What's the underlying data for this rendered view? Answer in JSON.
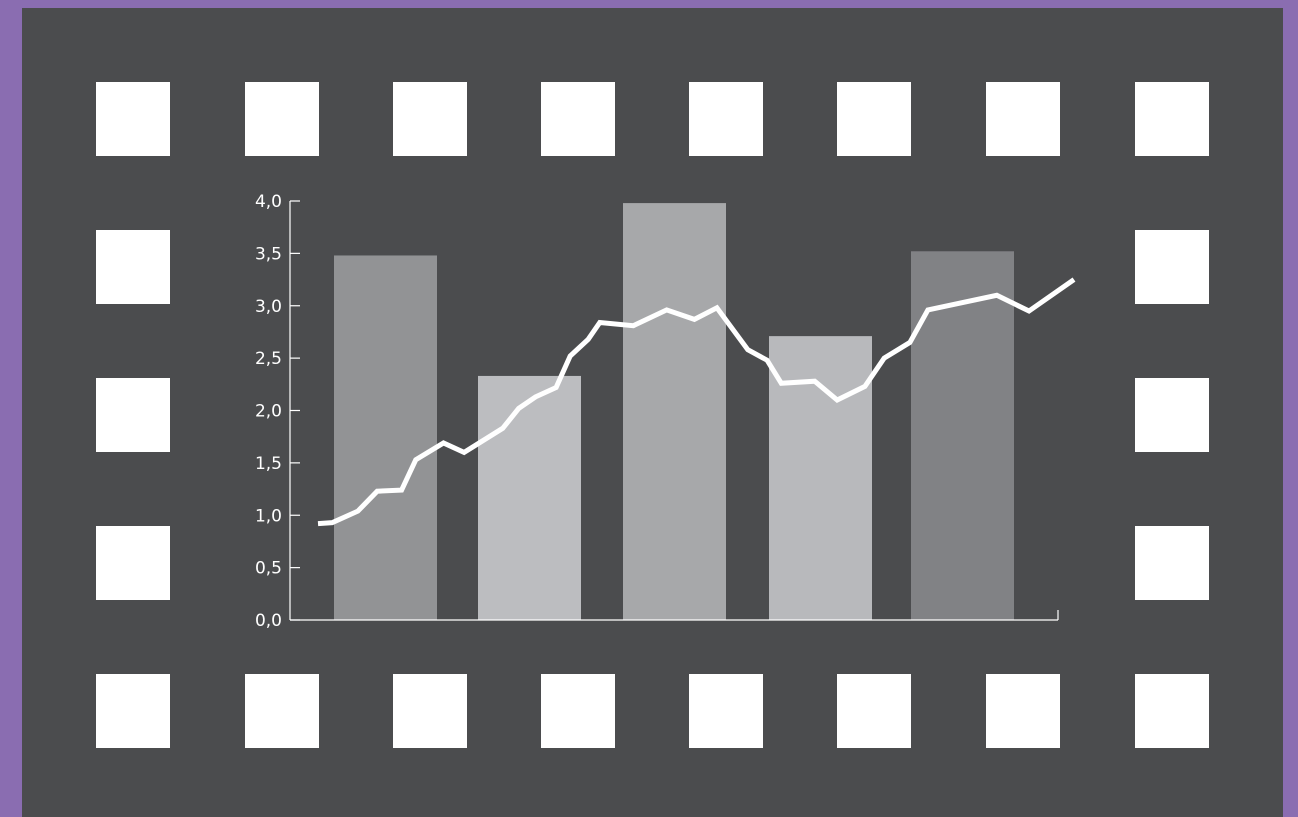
{
  "colors": {
    "border": "#8a6db1",
    "film_background": "#4b4c4e",
    "sprocket_holes": "#ffffff",
    "line": "#ffffff",
    "bar_colors": [
      "#929395",
      "#bcbdc0",
      "#a7a8aa",
      "#b8b9bc",
      "#818285"
    ]
  },
  "icons": [
    "film-strip-icon"
  ],
  "chart_data": {
    "type": "bar",
    "title": "",
    "xlabel": "",
    "ylabel": "",
    "ylim": [
      0,
      4
    ],
    "yticks": [
      "0,0",
      "0,5",
      "1,0",
      "1,5",
      "2,0",
      "2,5",
      "3,0",
      "3,5",
      "4,0"
    ],
    "grid": false,
    "legend": "none",
    "categories": [
      "",
      "",
      "",
      "",
      ""
    ],
    "series": [
      {
        "type": "bar",
        "values": [
          3.48,
          2.33,
          3.98,
          2.71,
          3.52
        ]
      },
      {
        "type": "line",
        "x": [
          0,
          0.2,
          0.5,
          0.7,
          0.95,
          1.1,
          1.4,
          1.7,
          2.05,
          2.25,
          2.55,
          2.8,
          3.05,
          3.2,
          3.4,
          3.58,
          3.8,
          4.05,
          4.3,
          4.5,
          4.75,
          5.05,
          5.3,
          5.6,
          5.85,
          6.15,
          6.45,
          6.75,
          7.0,
          7.15,
          7.45,
          7.65,
          7.95,
          8.2,
          8.45,
          8.7,
          8.95,
          9.15,
          9.4,
          9.6,
          9.8,
          10.1,
          10.4,
          10.75,
          11.1,
          11.5,
          11.85,
          12.25,
          12.55,
          12.85,
          13.15,
          13.45
        ],
        "values": [
          0.92,
          0.93,
          1.04,
          1.23,
          1.24,
          1.53,
          1.69,
          1.6,
          1.72,
          1.83,
          2.02,
          2.13,
          2.22,
          2.52,
          2.68,
          2.84,
          2.81,
          2.96,
          2.87,
          2.98,
          2.58,
          2.48,
          2.26,
          2.28,
          2.1,
          2.23,
          2.5,
          2.65,
          2.96,
          3.02,
          3.1,
          2.95,
          3.25,
          3.25,
          3.25,
          3.25,
          3.25,
          3.25,
          3.25,
          3.25,
          3.25,
          3.25,
          3.25,
          3.25,
          3.25,
          3.25,
          3.25,
          3.25,
          3.25,
          3.25,
          3.25,
          3.25
        ],
        "points": [
          [
            0.0,
            0.92
          ],
          [
            0.22,
            0.93
          ],
          [
            0.62,
            1.04
          ],
          [
            0.92,
            1.23
          ],
          [
            1.3,
            1.24
          ],
          [
            1.52,
            1.53
          ],
          [
            1.95,
            1.69
          ],
          [
            2.27,
            1.6
          ],
          [
            2.87,
            1.83
          ],
          [
            3.12,
            2.02
          ],
          [
            3.38,
            2.13
          ],
          [
            3.7,
            2.22
          ],
          [
            3.92,
            2.52
          ],
          [
            4.2,
            2.68
          ],
          [
            4.38,
            2.84
          ],
          [
            4.9,
            2.81
          ],
          [
            5.42,
            2.96
          ],
          [
            5.85,
            2.87
          ],
          [
            6.2,
            2.98
          ],
          [
            6.68,
            2.58
          ],
          [
            6.98,
            2.48
          ],
          [
            7.2,
            2.26
          ],
          [
            7.72,
            2.28
          ],
          [
            8.07,
            2.1
          ],
          [
            8.5,
            2.23
          ],
          [
            8.8,
            2.5
          ],
          [
            9.2,
            2.65
          ],
          [
            9.48,
            2.96
          ],
          [
            10.55,
            3.1
          ],
          [
            11.05,
            2.95
          ],
          [
            11.75,
            3.25
          ]
        ]
      }
    ]
  }
}
